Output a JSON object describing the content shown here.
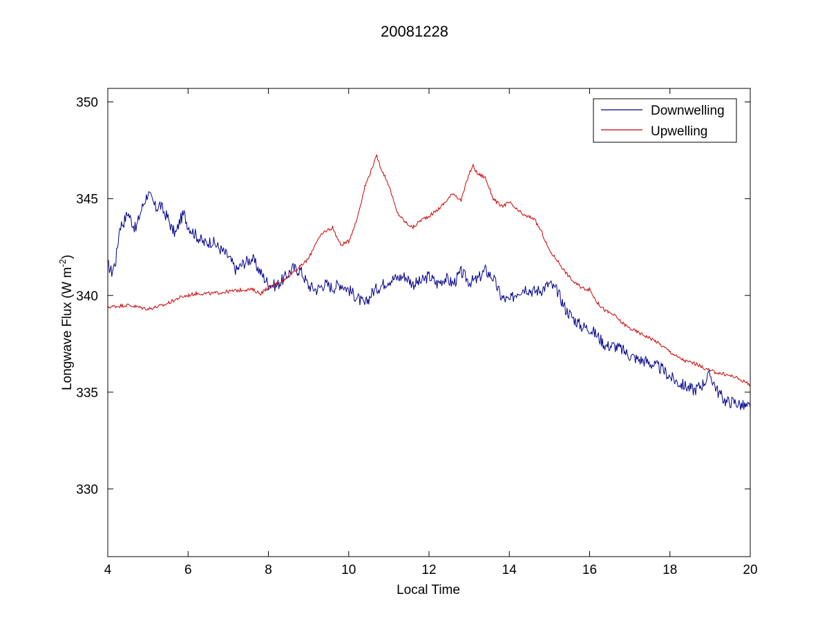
{
  "chart_data": {
    "type": "line",
    "title": "20081228",
    "xlabel": "Local Time",
    "ylabel_main": "Longwave Flux (W m",
    "ylabel_sup": "-2",
    "ylabel_close": ")",
    "xlim": [
      4,
      20
    ],
    "ylim": [
      326.5,
      350.7
    ],
    "xticks": [
      4,
      6,
      8,
      10,
      12,
      14,
      16,
      18,
      20
    ],
    "yticks": [
      330,
      335,
      340,
      345,
      350
    ],
    "grid": false,
    "legend_position": "top-right",
    "series": [
      {
        "name": "Downwelling",
        "color": "#00008b",
        "x": [
          4.0,
          4.1,
          4.2,
          4.3,
          4.4,
          4.5,
          4.6,
          4.7,
          4.8,
          4.9,
          5.0,
          5.1,
          5.2,
          5.3,
          5.4,
          5.5,
          5.6,
          5.7,
          5.8,
          5.9,
          6.0,
          6.2,
          6.4,
          6.6,
          6.8,
          7.0,
          7.2,
          7.4,
          7.6,
          7.8,
          8.0,
          8.2,
          8.4,
          8.6,
          8.8,
          9.0,
          9.2,
          9.4,
          9.6,
          9.8,
          10.0,
          10.2,
          10.4,
          10.6,
          10.8,
          11.0,
          11.2,
          11.4,
          11.6,
          11.8,
          12.0,
          12.2,
          12.4,
          12.6,
          12.8,
          13.0,
          13.2,
          13.4,
          13.6,
          13.8,
          14.0,
          14.2,
          14.4,
          14.6,
          14.8,
          15.0,
          15.2,
          15.4,
          15.6,
          15.8,
          16.0,
          16.2,
          16.4,
          16.6,
          16.8,
          17.0,
          17.2,
          17.4,
          17.6,
          17.8,
          18.0,
          18.2,
          18.4,
          18.6,
          18.8,
          19.0,
          19.2,
          19.4,
          19.6,
          19.8,
          20.0
        ],
        "values": [
          341.6,
          341.2,
          341.8,
          343.6,
          343.8,
          344.3,
          343.8,
          343.4,
          344.2,
          344.8,
          345.3,
          344.9,
          344.5,
          344.7,
          344.3,
          344.0,
          343.4,
          343.2,
          343.9,
          344.2,
          343.6,
          343.1,
          342.7,
          342.8,
          342.4,
          342.0,
          341.3,
          341.7,
          341.9,
          341.2,
          340.6,
          340.5,
          340.9,
          341.4,
          341.3,
          340.5,
          340.3,
          340.6,
          340.4,
          340.6,
          340.3,
          339.9,
          339.5,
          340.2,
          340.5,
          340.8,
          340.9,
          341.0,
          340.6,
          340.7,
          341.0,
          340.6,
          340.9,
          340.6,
          341.2,
          340.7,
          340.8,
          341.3,
          340.9,
          339.9,
          339.7,
          340.2,
          340.4,
          340.2,
          340.3,
          340.6,
          340.2,
          339.3,
          338.8,
          338.4,
          338.3,
          337.9,
          337.4,
          337.4,
          337.2,
          336.9,
          336.7,
          336.6,
          336.4,
          336.2,
          335.8,
          335.5,
          335.3,
          335.1,
          335.4,
          335.9,
          335.0,
          334.5,
          334.5,
          334.3,
          334.2
        ]
      },
      {
        "name": "Upwelling",
        "color": "#cc0000",
        "x": [
          4.0,
          4.5,
          5.0,
          5.4,
          5.8,
          6.2,
          6.6,
          7.0,
          7.4,
          7.6,
          7.8,
          8.0,
          8.2,
          8.4,
          8.6,
          8.8,
          9.0,
          9.2,
          9.4,
          9.6,
          9.8,
          10.0,
          10.2,
          10.4,
          10.6,
          10.7,
          10.8,
          11.0,
          11.2,
          11.4,
          11.6,
          11.8,
          12.0,
          12.2,
          12.4,
          12.6,
          12.8,
          13.0,
          13.1,
          13.2,
          13.4,
          13.6,
          13.8,
          14.0,
          14.2,
          14.4,
          14.6,
          14.8,
          15.0,
          15.2,
          15.4,
          15.6,
          15.8,
          16.0,
          16.2,
          16.4,
          16.6,
          16.8,
          17.0,
          17.2,
          17.4,
          17.6,
          17.8,
          18.0,
          18.2,
          18.4,
          18.6,
          18.8,
          19.0,
          19.2,
          19.4,
          19.6,
          19.8,
          20.0
        ],
        "values": [
          339.4,
          339.5,
          339.3,
          339.5,
          339.9,
          340.1,
          340.1,
          340.2,
          340.3,
          340.3,
          340.1,
          340.4,
          340.6,
          340.8,
          341.2,
          341.5,
          341.9,
          342.8,
          343.3,
          343.5,
          342.6,
          342.8,
          343.9,
          345.6,
          346.7,
          347.2,
          346.6,
          345.7,
          344.3,
          343.8,
          343.5,
          343.9,
          344.1,
          344.4,
          344.8,
          345.3,
          344.9,
          346.3,
          346.7,
          346.3,
          346.1,
          345.0,
          344.6,
          344.8,
          344.4,
          344.1,
          344.0,
          343.3,
          342.3,
          341.8,
          341.2,
          340.7,
          340.4,
          340.3,
          339.6,
          339.2,
          339.0,
          338.6,
          338.3,
          338.1,
          337.9,
          337.7,
          337.4,
          337.1,
          336.8,
          336.6,
          336.5,
          336.3,
          336.1,
          336.0,
          335.9,
          335.8,
          335.6,
          335.4
        ]
      }
    ]
  }
}
